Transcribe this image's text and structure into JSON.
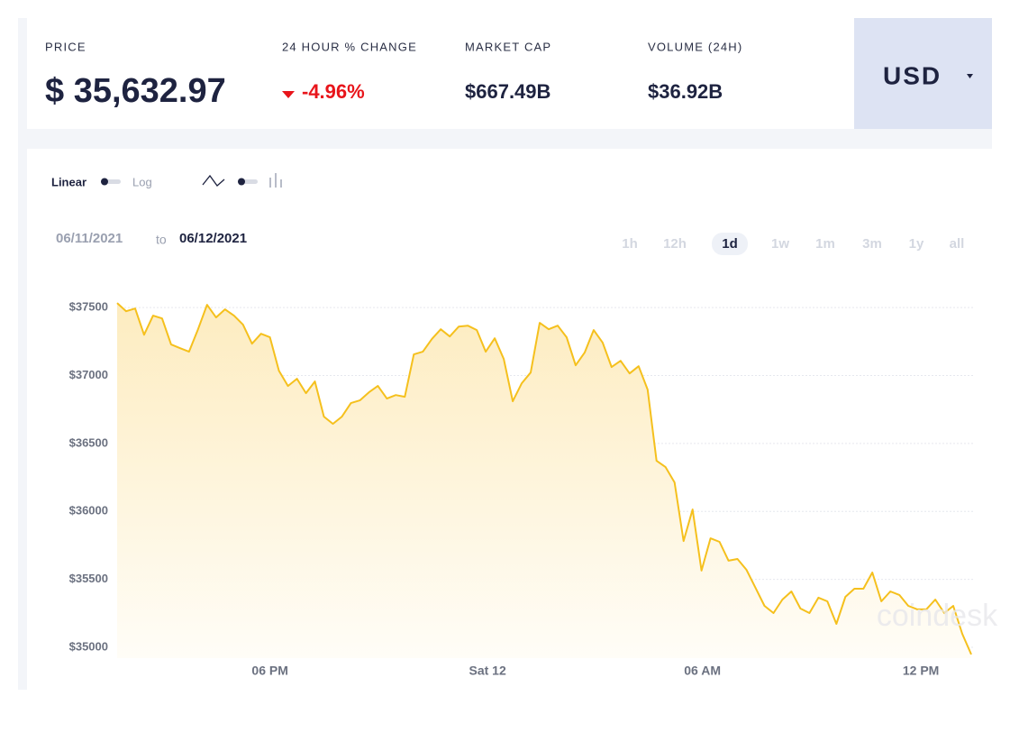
{
  "header": {
    "price_label": "PRICE",
    "price": "$ 35,632.97",
    "change_label": "24 HOUR % CHANGE",
    "change": "-4.96%",
    "cap_label": "MARKET CAP",
    "cap": "$667.49B",
    "volume_label": "VOLUME (24H)",
    "volume": "$36.92B",
    "currency": "USD"
  },
  "controls": {
    "linear": "Linear",
    "log": "Log",
    "date_from": "06/11/2021",
    "date_sep": "to",
    "date_to": "06/12/2021",
    "ranges": [
      "1h",
      "12h",
      "1d",
      "1w",
      "1m",
      "3m",
      "1y",
      "all"
    ],
    "selected_range": "1d"
  },
  "watermark": "coindesk",
  "chart_data": {
    "type": "line",
    "color": "#f5c01d",
    "grid": true,
    "values": [
      37533,
      37473,
      37493,
      37300,
      37440,
      37420,
      37228,
      37201,
      37175,
      37340,
      37520,
      37427,
      37487,
      37440,
      37374,
      37234,
      37307,
      37281,
      37035,
      36923,
      36976,
      36870,
      36956,
      36697,
      36644,
      36697,
      36797,
      36817,
      36876,
      36923,
      36830,
      36856,
      36843,
      37155,
      37175,
      37268,
      37340,
      37287,
      37360,
      37367,
      37334,
      37175,
      37274,
      37122,
      36810,
      36943,
      37022,
      37387,
      37340,
      37367,
      37281,
      37075,
      37168,
      37334,
      37241,
      37062,
      37108,
      37015,
      37068,
      36896,
      36372,
      36326,
      36213,
      35782,
      36014,
      35564,
      35802,
      35776,
      35637,
      35650,
      35570,
      35438,
      35305,
      35252,
      35351,
      35411,
      35285,
      35252,
      35365,
      35338,
      35172,
      35371,
      35431,
      35431,
      35550,
      35338,
      35411,
      35385,
      35305,
      35279,
      35279,
      35351,
      35252,
      35305,
      35099,
      34947
    ],
    "xlim": [
      0,
      95
    ],
    "xticks": [
      {
        "value": 17,
        "label": "06 PM"
      },
      {
        "value": 41.2,
        "label": "Sat 12"
      },
      {
        "value": 65.1,
        "label": "06 AM"
      },
      {
        "value": 89.4,
        "label": "12 PM"
      }
    ],
    "ylim": [
      34920,
      37640
    ],
    "yticks": [
      {
        "value": 35000,
        "label": "$35000"
      },
      {
        "value": 35500,
        "label": "$35500"
      },
      {
        "value": 36000,
        "label": "$36000"
      },
      {
        "value": 36500,
        "label": "$36500"
      },
      {
        "value": 37000,
        "label": "$37000"
      },
      {
        "value": 37500,
        "label": "$37500"
      }
    ]
  }
}
